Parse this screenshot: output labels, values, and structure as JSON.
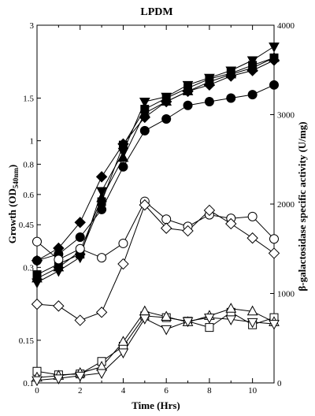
{
  "chart_data": {
    "type": "line",
    "title": "LPDM",
    "xlabel": "Time (Hrs)",
    "ylabel_left": "Growth (OD",
    "ylabel_left_sub": "540nm",
    "ylabel_left_close": ")",
    "ylabel_right": "β-galactosidase specific activity (U/mg)",
    "x_ticks": [
      0,
      2,
      4,
      6,
      8,
      10
    ],
    "x_tick_labels": [
      "0",
      "2",
      "4",
      "6",
      "8",
      "10"
    ],
    "xlim": [
      0,
      11
    ],
    "left_scale": "log",
    "ylim_left": [
      0.1,
      3
    ],
    "left_ticks": [
      0.1,
      0.15,
      0.3,
      0.45,
      0.6,
      0.8,
      1,
      1.5,
      3
    ],
    "left_tick_labels": [
      "0.1",
      "0.15",
      "0.3",
      "0.45",
      "0.6",
      "0.8",
      "1",
      "1.5",
      "3"
    ],
    "ylim_right": [
      0,
      4000
    ],
    "right_ticks": [
      0,
      1000,
      2000,
      3000,
      4000
    ],
    "right_tick_labels": [
      "0",
      "1000",
      "2000",
      "3000",
      "4000"
    ],
    "x": [
      0,
      1,
      2,
      3,
      4,
      5,
      6,
      7,
      8,
      9,
      10,
      11
    ],
    "series": [
      {
        "axis": "left",
        "marker": "filled-circle",
        "values": [
          0.32,
          0.34,
          0.4,
          0.52,
          0.78,
          1.1,
          1.23,
          1.4,
          1.45,
          1.5,
          1.55,
          1.7
        ]
      },
      {
        "axis": "left",
        "marker": "filled-square",
        "values": [
          0.28,
          0.31,
          0.34,
          0.56,
          0.96,
          1.35,
          1.5,
          1.65,
          1.8,
          1.9,
          2.05,
          2.2
        ]
      },
      {
        "axis": "left",
        "marker": "filled-diamond",
        "values": [
          0.32,
          0.36,
          0.46,
          0.71,
          0.97,
          1.25,
          1.45,
          1.6,
          1.7,
          1.85,
          1.95,
          2.15
        ]
      },
      {
        "axis": "left",
        "marker": "filled-triangle-up",
        "values": [
          0.27,
          0.3,
          0.35,
          0.58,
          0.85,
          1.3,
          1.45,
          1.6,
          1.75,
          1.88,
          2.0,
          2.2
        ]
      },
      {
        "axis": "left",
        "marker": "filled-triangle-down",
        "values": [
          0.26,
          0.29,
          0.33,
          0.62,
          0.9,
          1.45,
          1.52,
          1.7,
          1.82,
          1.95,
          2.15,
          2.45
        ]
      },
      {
        "axis": "right",
        "marker": "open-circle",
        "values": [
          1580,
          1380,
          1500,
          1400,
          1560,
          2030,
          1830,
          1750,
          1880,
          1840,
          1860,
          1610
        ]
      },
      {
        "axis": "right",
        "marker": "open-diamond",
        "values": [
          880,
          860,
          700,
          790,
          1330,
          1990,
          1730,
          1700,
          1930,
          1780,
          1620,
          1450
        ]
      },
      {
        "axis": "right",
        "marker": "open-square",
        "values": [
          130,
          90,
          100,
          240,
          410,
          750,
          730,
          690,
          620,
          790,
          650,
          730
        ]
      },
      {
        "axis": "right",
        "marker": "open-triangle-up",
        "values": [
          60,
          80,
          110,
          180,
          460,
          800,
          740,
          680,
          750,
          830,
          800,
          680
        ]
      },
      {
        "axis": "right",
        "marker": "open-triangle-down",
        "values": [
          30,
          50,
          80,
          110,
          340,
          720,
          600,
          690,
          730,
          710,
          680,
          660
        ]
      }
    ]
  }
}
